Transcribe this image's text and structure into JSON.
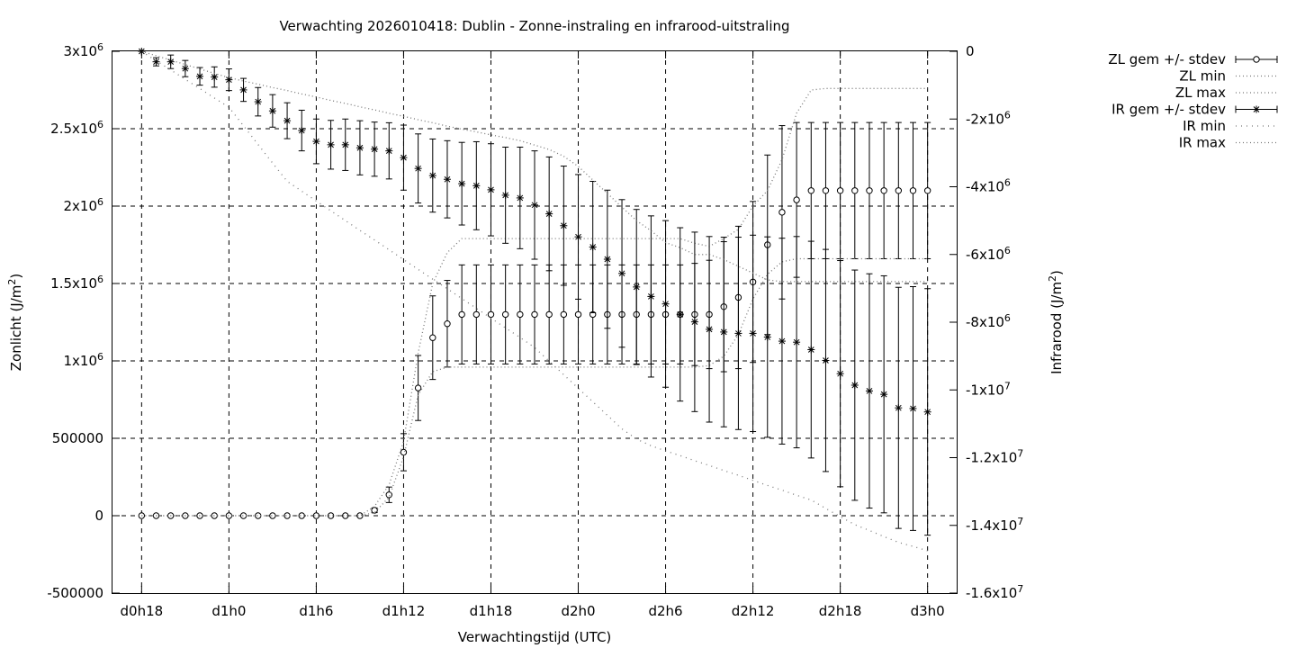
{
  "chart_data": {
    "type": "line",
    "title": "Verwachting 2026010418: Dublin - Zonne-instraling en infrarood-uitstraling",
    "xlabel": "Verwachtingstijd (UTC)",
    "ylabel_left": "Zonlicht (J/m²)",
    "ylabel_right": "Infrarood (J/m²)",
    "x_unit": "hours from d0h18",
    "x_tick_values": [
      0,
      6,
      12,
      18,
      24,
      30,
      36,
      42,
      48,
      54
    ],
    "x_tick_labels": [
      "d0h18",
      "d1h0",
      "d1h6",
      "d1h12",
      "d1h18",
      "d2h0",
      "d2h6",
      "d2h12",
      "d2h18",
      "d3h0"
    ],
    "xlim": [
      -2,
      56
    ],
    "y_left_ticks": [
      3000000,
      2500000,
      2000000,
      1500000,
      1000000,
      500000,
      0,
      -500000
    ],
    "y_left_tick_labels": [
      "3x10⁶",
      "2.5x10⁶",
      "2x10⁶",
      "1.5x10⁶",
      "1x10⁶",
      "500000",
      "0",
      "-500000"
    ],
    "ylim_left": [
      -500000,
      3000000
    ],
    "y_right_ticks": [
      0,
      -2000000,
      -4000000,
      -6000000,
      -8000000,
      -10000000,
      -12000000,
      -14000000,
      -16000000
    ],
    "y_right_tick_labels": [
      "0",
      "-2x10⁶",
      "-4x10⁶",
      "-6x10⁶",
      "-8x10⁶",
      "-1x10⁷",
      "-1.2x10⁷",
      "-1.4x10⁷",
      "-1.6x10⁷"
    ],
    "ylim_right": [
      -16000000,
      0
    ],
    "grid": true,
    "legend_position": "outside top-right",
    "x": [
      0,
      1,
      2,
      3,
      4,
      5,
      6,
      7,
      8,
      9,
      10,
      11,
      12,
      13,
      14,
      15,
      16,
      17,
      18,
      19,
      20,
      21,
      22,
      23,
      24,
      25,
      26,
      27,
      28,
      29,
      30,
      31,
      32,
      33,
      34,
      35,
      36,
      37,
      38,
      39,
      40,
      41,
      42,
      43,
      44,
      45,
      46,
      47,
      48,
      49,
      50,
      51,
      52,
      53,
      54
    ],
    "series": [
      {
        "name": "ZL gem +/- stdev",
        "axis": "left",
        "marker": "circle",
        "values": [
          0,
          0,
          0,
          0,
          0,
          0,
          0,
          0,
          0,
          0,
          0,
          0,
          0,
          0,
          0,
          0,
          35000,
          135000,
          410000,
          825000,
          1150000,
          1240000,
          1300000,
          1300000,
          1300000,
          1300000,
          1300000,
          1300000,
          1300000,
          1300000,
          1300000,
          1300000,
          1300000,
          1300000,
          1300000,
          1300000,
          1300000,
          1300000,
          1300000,
          1300000,
          1350000,
          1410000,
          1510000,
          1750000,
          1960000,
          2040000,
          2100000,
          2100000,
          2100000,
          2100000,
          2100000,
          2100000,
          2100000,
          2100000,
          2100000
        ],
        "stdev": [
          0,
          0,
          0,
          0,
          0,
          0,
          0,
          0,
          0,
          0,
          0,
          0,
          0,
          0,
          0,
          0,
          15000,
          50000,
          120000,
          210000,
          270000,
          280000,
          320000,
          320000,
          320000,
          320000,
          320000,
          320000,
          320000,
          320000,
          320000,
          320000,
          320000,
          320000,
          320000,
          320000,
          320000,
          320000,
          330000,
          350000,
          420000,
          460000,
          520000,
          580000,
          560000,
          500000,
          440000,
          440000,
          440000,
          440000,
          440000,
          440000,
          440000,
          440000,
          440000
        ]
      },
      {
        "name": "ZL min",
        "axis": "left",
        "style": "dotted",
        "values": [
          0,
          0,
          0,
          0,
          0,
          0,
          0,
          0,
          0,
          0,
          0,
          0,
          0,
          0,
          0,
          0,
          20000,
          120000,
          380000,
          780000,
          930000,
          960000,
          960000,
          960000,
          960000,
          960000,
          960000,
          960000,
          960000,
          960000,
          960000,
          960000,
          960000,
          960000,
          960000,
          960000,
          960000,
          960000,
          960000,
          970000,
          1030000,
          1170000,
          1400000,
          1560000,
          1640000,
          1660000,
          1660000,
          1660000,
          1660000,
          1660000,
          1660000,
          1660000,
          1660000,
          1660000,
          1660000
        ]
      },
      {
        "name": "ZL max",
        "axis": "left",
        "style": "dotted",
        "values": [
          0,
          0,
          0,
          0,
          0,
          0,
          0,
          0,
          0,
          0,
          0,
          0,
          0,
          0,
          0,
          0,
          60000,
          200000,
          480000,
          1050000,
          1500000,
          1700000,
          1790000,
          1790000,
          1790000,
          1790000,
          1790000,
          1790000,
          1790000,
          1790000,
          1790000,
          1790000,
          1790000,
          1790000,
          1790000,
          1790000,
          1790000,
          1790000,
          1760000,
          1740000,
          1790000,
          1850000,
          2000000,
          2100000,
          2300000,
          2600000,
          2750000,
          2760000,
          2760000,
          2760000,
          2760000,
          2760000,
          2760000,
          2760000,
          2760000
        ]
      },
      {
        "name": "IR gem +/- stdev",
        "axis": "right",
        "marker": "star",
        "values": [
          0,
          -310000,
          -310000,
          -510000,
          -740000,
          -760000,
          -840000,
          -1140000,
          -1490000,
          -1760000,
          -2050000,
          -2340000,
          -2660000,
          -2760000,
          -2760000,
          -2850000,
          -2890000,
          -2940000,
          -3140000,
          -3460000,
          -3670000,
          -3780000,
          -3910000,
          -3970000,
          -4090000,
          -4250000,
          -4330000,
          -4540000,
          -4800000,
          -5150000,
          -5480000,
          -5780000,
          -6140000,
          -6560000,
          -6960000,
          -7240000,
          -7460000,
          -7770000,
          -7990000,
          -8210000,
          -8290000,
          -8330000,
          -8330000,
          -8440000,
          -8560000,
          -8590000,
          -8810000,
          -9130000,
          -9520000,
          -9860000,
          -10030000,
          -10130000,
          -10530000,
          -10550000,
          -10650000
        ],
        "stdev": [
          0,
          120000,
          200000,
          240000,
          260000,
          300000,
          320000,
          340000,
          420000,
          480000,
          530000,
          600000,
          660000,
          720000,
          760000,
          800000,
          800000,
          830000,
          960000,
          1020000,
          1080000,
          1140000,
          1220000,
          1300000,
          1360000,
          1420000,
          1500000,
          1600000,
          1680000,
          1760000,
          1840000,
          1940000,
          2040000,
          2180000,
          2290000,
          2380000,
          2460000,
          2560000,
          2650000,
          2740000,
          2800000,
          2840000,
          2900000,
          2960000,
          3040000,
          3120000,
          3200000,
          3280000,
          3340000,
          3400000,
          3460000,
          3500000,
          3560000,
          3600000,
          3640000
        ]
      },
      {
        "name": "IR min",
        "axis": "right",
        "style": "dotted",
        "values": [
          0,
          -280000,
          -550000,
          -830000,
          -1100000,
          -1380000,
          -1650000,
          -2200000,
          -2750000,
          -3300000,
          -3840000,
          -4130000,
          -4420000,
          -4710000,
          -5000000,
          -5290000,
          -5570000,
          -5860000,
          -6150000,
          -6440000,
          -6730000,
          -7010000,
          -7300000,
          -7590000,
          -7880000,
          -8170000,
          -8450000,
          -8750000,
          -9150000,
          -9550000,
          -9950000,
          -10350000,
          -10750000,
          -11150000,
          -11450000,
          -11650000,
          -11800000,
          -11940000,
          -12090000,
          -12230000,
          -12380000,
          -12520000,
          -12670000,
          -12820000,
          -12960000,
          -13110000,
          -13250000,
          -13500000,
          -13740000,
          -13980000,
          -14150000,
          -14330000,
          -14500000,
          -14620000,
          -14750000
        ]
      },
      {
        "name": "IR max",
        "axis": "right",
        "style": "dotted",
        "values": [
          0,
          -130000,
          -260000,
          -390000,
          -520000,
          -650000,
          -780000,
          -880000,
          -970000,
          -1070000,
          -1160000,
          -1260000,
          -1350000,
          -1450000,
          -1540000,
          -1640000,
          -1730000,
          -1830000,
          -1920000,
          -2020000,
          -2110000,
          -2210000,
          -2300000,
          -2380000,
          -2470000,
          -2550000,
          -2640000,
          -2770000,
          -2900000,
          -3100000,
          -3400000,
          -3800000,
          -4200000,
          -4600000,
          -5000000,
          -5300000,
          -5650000,
          -5800000,
          -6000000,
          -6000000,
          -6150000,
          -6350000,
          -6550000,
          -6750000,
          -6800000,
          -6800000,
          -6800000,
          -6800000,
          -6800000,
          -6800000,
          -6800000,
          -6800000,
          -6800000,
          -6800000,
          -6800000
        ]
      }
    ]
  }
}
